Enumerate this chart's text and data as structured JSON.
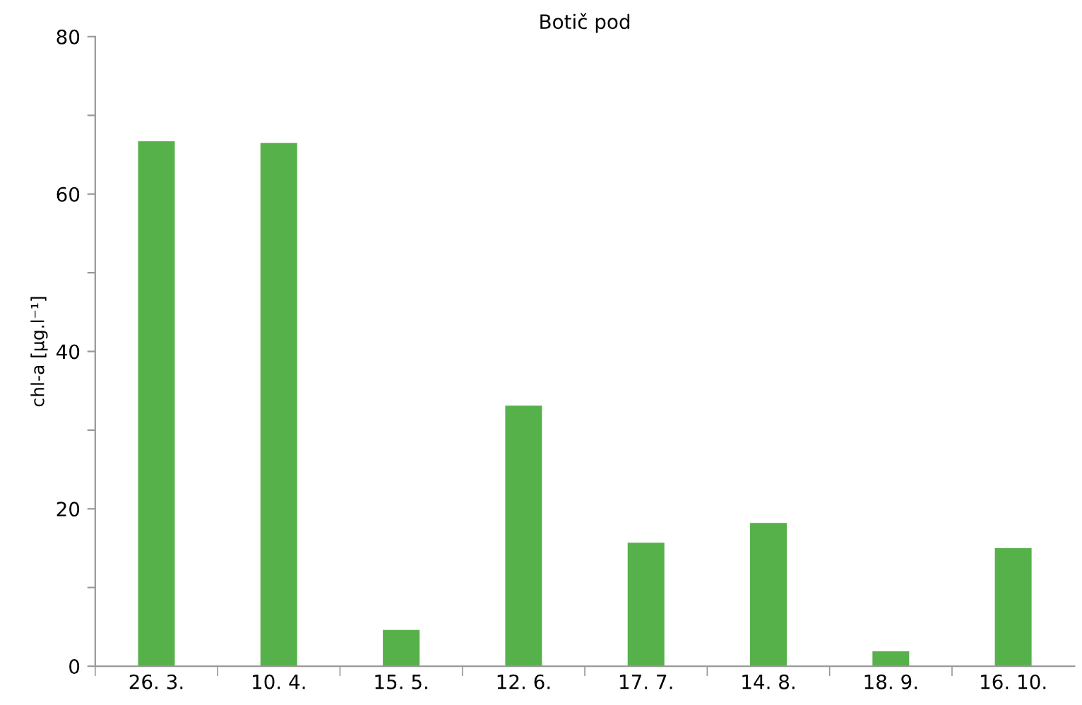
{
  "chart_data": {
    "type": "bar",
    "title": "Botič pod",
    "ylabel": "chl-a [μg.l⁻¹]",
    "categories": [
      "26. 3.",
      "10. 4.",
      "15. 5.",
      "12. 6.",
      "17. 7.",
      "14. 8.",
      "18. 9.",
      "16. 10."
    ],
    "values": [
      66.7,
      66.5,
      4.6,
      33.1,
      15.7,
      18.2,
      1.9,
      15.0
    ],
    "color": "#57b14b",
    "ylim": [
      0,
      80
    ],
    "yticks": [
      0,
      {
        "value": 10,
        "label": null
      },
      20,
      {
        "value": 30,
        "label": null
      },
      40,
      {
        "value": 50,
        "label": null
      },
      60,
      {
        "value": 70,
        "label": null
      },
      80
    ],
    "grid": false,
    "legend": false
  }
}
